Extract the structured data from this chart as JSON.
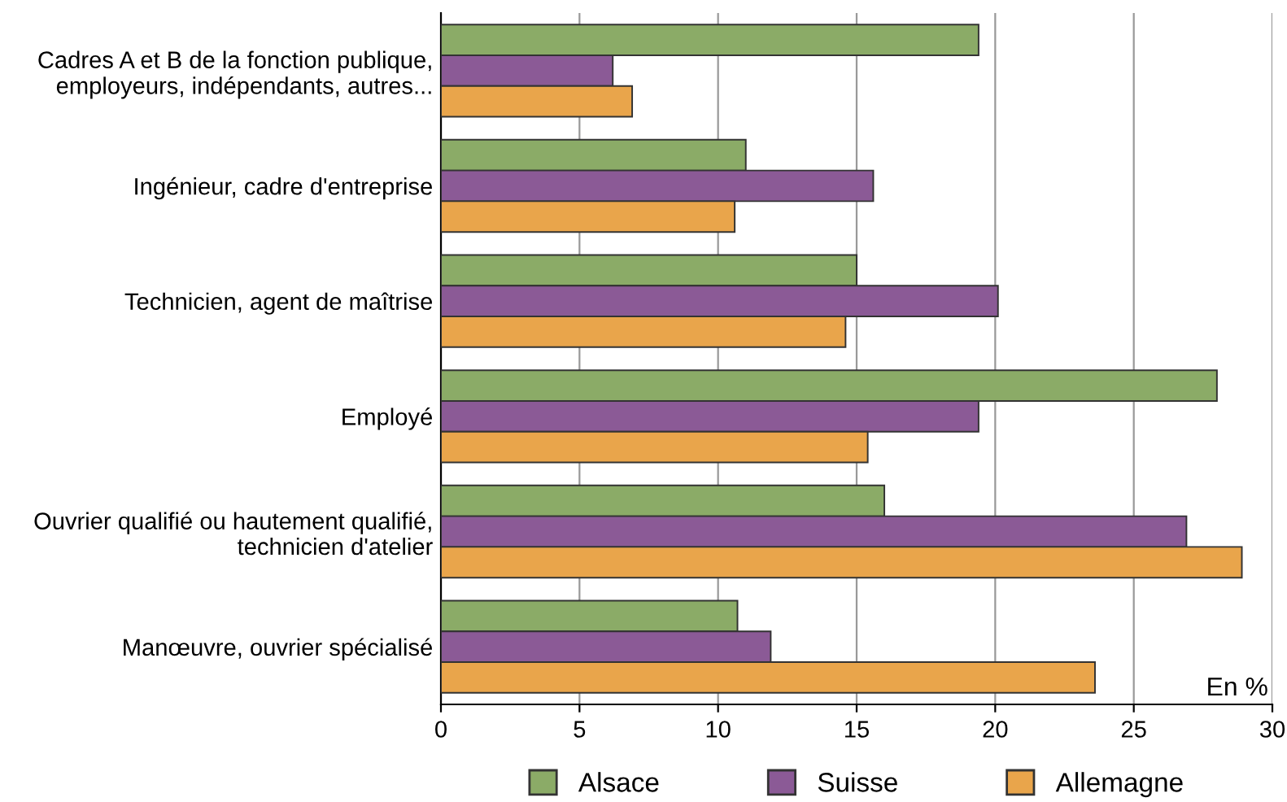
{
  "chart_data": {
    "type": "bar",
    "orientation": "horizontal",
    "categories": [
      "Cadres A et B de la fonction publique,\nemployeurs, indépendants, autres...",
      "Ingénieur, cadre d'entreprise",
      "Technicien, agent de maîtrise",
      "Employé",
      "Ouvrier qualifié ou hautement qualifié,\ntechnicien d'atelier",
      "Manœuvre, ouvrier spécialisé"
    ],
    "series": [
      {
        "name": "Alsace",
        "color": "#8bab67",
        "values": [
          19.4,
          11.0,
          15.0,
          28.0,
          16.0,
          10.7
        ]
      },
      {
        "name": "Suisse",
        "color": "#8b5a96",
        "values": [
          6.2,
          15.6,
          20.1,
          19.4,
          26.9,
          11.9
        ]
      },
      {
        "name": "Allemagne",
        "color": "#e9a54b",
        "values": [
          6.9,
          10.6,
          14.6,
          15.4,
          28.9,
          23.6
        ]
      }
    ],
    "xlim": [
      0,
      30
    ],
    "xticks": [
      0,
      5,
      10,
      15,
      20,
      25,
      30
    ],
    "grid": "x",
    "legend": "bottom",
    "annotations": [
      "En %"
    ]
  }
}
